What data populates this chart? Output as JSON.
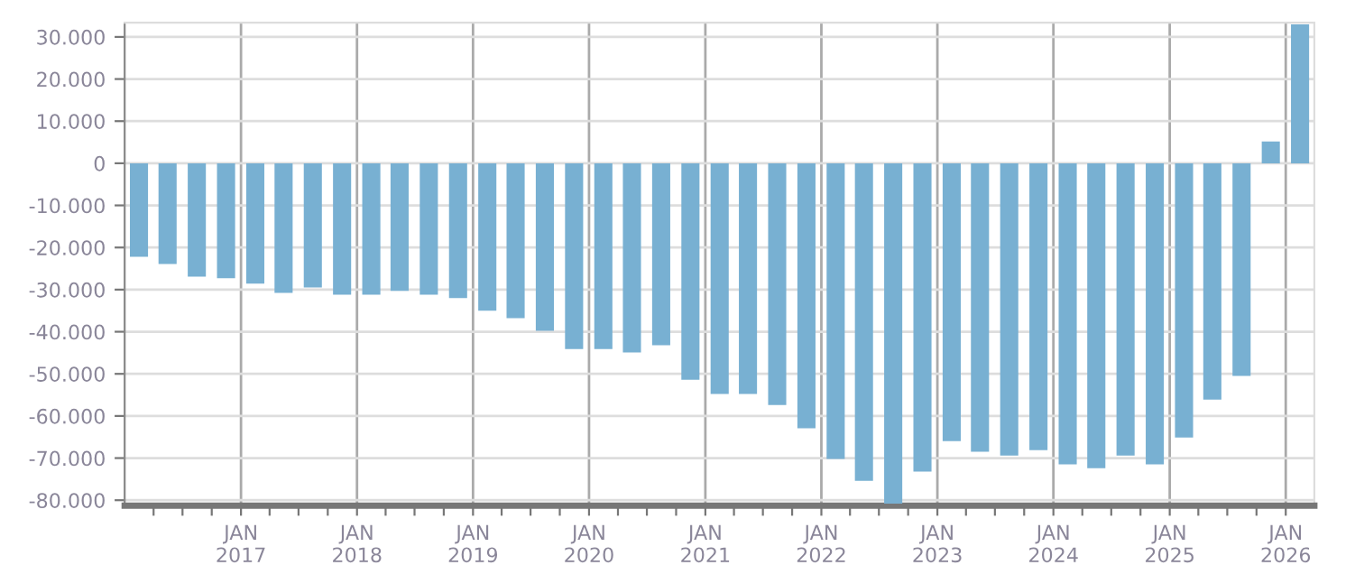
{
  "chart_data": {
    "type": "bar",
    "color": "#78b0d2",
    "x": [
      "2016-02-15",
      "2016-05-15",
      "2016-08-15",
      "2016-11-15",
      "2017-02-15",
      "2017-05-15",
      "2017-08-15",
      "2017-11-15",
      "2018-02-15",
      "2018-05-15",
      "2018-08-15",
      "2018-11-15",
      "2019-02-15",
      "2019-05-15",
      "2019-08-15",
      "2019-11-15",
      "2020-02-15",
      "2020-05-15",
      "2020-08-15",
      "2020-11-15",
      "2021-02-15",
      "2021-05-15",
      "2021-08-15",
      "2021-11-15",
      "2022-02-15",
      "2022-05-15",
      "2022-08-15",
      "2022-11-15",
      "2023-02-15",
      "2023-05-15",
      "2023-08-15",
      "2023-11-15",
      "2024-02-15",
      "2024-05-15",
      "2024-08-15",
      "2024-11-15",
      "2025-02-15",
      "2025-05-15",
      "2025-08-15",
      "2025-11-15",
      "2026-02-15"
    ],
    "values": [
      -22200,
      -23900,
      -26900,
      -27300,
      -28600,
      -30800,
      -29500,
      -31200,
      -31200,
      -30300,
      -31200,
      -32000,
      -35000,
      -36800,
      -39800,
      -44100,
      -44100,
      -44900,
      -43200,
      -51400,
      -54800,
      -54800,
      -57400,
      -62900,
      -70200,
      -75400,
      -80800,
      -73200,
      -66000,
      -68500,
      -69400,
      -68100,
      -71500,
      -72400,
      -69400,
      -71500,
      -65100,
      -56100,
      -50500,
      5200,
      33000
    ],
    "xlim": [
      "2016-01-01",
      "2026-04-01"
    ],
    "xticks": [
      {
        "value": "2016-04-01",
        "label": null
      },
      {
        "value": "2016-07-01",
        "label": null
      },
      {
        "value": "2016-10-01",
        "label": null
      },
      {
        "value": "2017-01-01",
        "label": "JAN\n2017"
      },
      {
        "value": "2017-04-01",
        "label": null
      },
      {
        "value": "2017-07-01",
        "label": null
      },
      {
        "value": "2017-10-01",
        "label": null
      },
      {
        "value": "2018-01-01",
        "label": "JAN\n2018"
      },
      {
        "value": "2018-04-01",
        "label": null
      },
      {
        "value": "2018-07-01",
        "label": null
      },
      {
        "value": "2018-10-01",
        "label": null
      },
      {
        "value": "2019-01-01",
        "label": "JAN\n2019"
      },
      {
        "value": "2019-04-01",
        "label": null
      },
      {
        "value": "2019-07-01",
        "label": null
      },
      {
        "value": "2019-10-01",
        "label": null
      },
      {
        "value": "2020-01-01",
        "label": "JAN\n2020"
      },
      {
        "value": "2020-04-01",
        "label": null
      },
      {
        "value": "2020-07-01",
        "label": null
      },
      {
        "value": "2020-10-01",
        "label": null
      },
      {
        "value": "2021-01-01",
        "label": "JAN\n2021"
      },
      {
        "value": "2021-04-01",
        "label": null
      },
      {
        "value": "2021-07-01",
        "label": null
      },
      {
        "value": "2021-10-01",
        "label": null
      },
      {
        "value": "2022-01-01",
        "label": "JAN\n2022"
      },
      {
        "value": "2022-04-01",
        "label": null
      },
      {
        "value": "2022-07-01",
        "label": null
      },
      {
        "value": "2022-10-01",
        "label": null
      },
      {
        "value": "2023-01-01",
        "label": "JAN\n2023"
      },
      {
        "value": "2023-04-01",
        "label": null
      },
      {
        "value": "2023-07-01",
        "label": null
      },
      {
        "value": "2023-10-01",
        "label": null
      },
      {
        "value": "2024-01-01",
        "label": "JAN\n2024"
      },
      {
        "value": "2024-04-01",
        "label": null
      },
      {
        "value": "2024-07-01",
        "label": null
      },
      {
        "value": "2024-10-01",
        "label": null
      },
      {
        "value": "2025-01-01",
        "label": "JAN\n2025"
      },
      {
        "value": "2025-04-01",
        "label": null
      },
      {
        "value": "2025-07-01",
        "label": null
      },
      {
        "value": "2025-10-01",
        "label": null
      },
      {
        "value": "2026-01-01",
        "label": "JAN\n2026"
      }
    ],
    "ylim": [
      -81300,
      33400
    ],
    "yticks": [
      {
        "value": 30000,
        "label": "30.000"
      },
      {
        "value": 20000,
        "label": "20.000"
      },
      {
        "value": 10000,
        "label": "10.000"
      },
      0,
      {
        "value": -10000,
        "label": "-10.000"
      },
      {
        "value": -20000,
        "label": "-20.000"
      },
      {
        "value": -30000,
        "label": "-30.000"
      },
      {
        "value": -40000,
        "label": "-40.000"
      },
      {
        "value": -50000,
        "label": "-50.000"
      },
      {
        "value": -60000,
        "label": "-60.000"
      },
      {
        "value": -70000,
        "label": "-70.000"
      },
      {
        "value": -80000,
        "label": "-80.000"
      }
    ],
    "grid": true
  }
}
